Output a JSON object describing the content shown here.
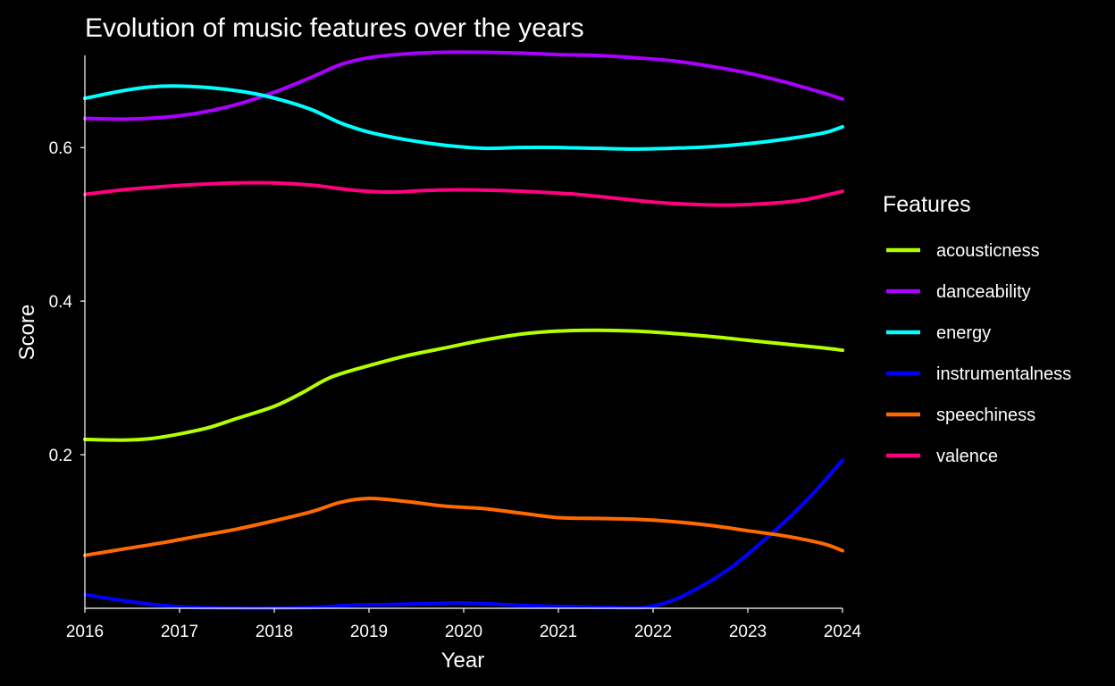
{
  "chart_data": {
    "type": "line",
    "title": "Evolution of music features over the years",
    "xlabel": "Year",
    "ylabel": "Score",
    "xlim": [
      2016,
      2024
    ],
    "ylim": [
      0.0,
      0.72
    ],
    "x_ticks": [
      2016,
      2017,
      2018,
      2019,
      2020,
      2021,
      2022,
      2023,
      2024
    ],
    "y_ticks": [
      0.2,
      0.4,
      0.6
    ],
    "y_tick_labels": [
      "0.2",
      "0.4",
      "0.6"
    ],
    "grid": false,
    "legend": {
      "title": "Features",
      "placement": "right"
    },
    "series": [
      {
        "name": "acousticness",
        "color": "#b3ff00",
        "points": [
          [
            2016.0,
            0.22
          ],
          [
            2016.4,
            0.219
          ],
          [
            2016.7,
            0.221
          ],
          [
            2017.0,
            0.227
          ],
          [
            2017.3,
            0.235
          ],
          [
            2017.6,
            0.247
          ],
          [
            2018.0,
            0.263
          ],
          [
            2018.3,
            0.281
          ],
          [
            2018.6,
            0.301
          ],
          [
            2019.0,
            0.316
          ],
          [
            2019.4,
            0.329
          ],
          [
            2019.8,
            0.339
          ],
          [
            2020.2,
            0.349
          ],
          [
            2020.6,
            0.357
          ],
          [
            2021.0,
            0.361
          ],
          [
            2021.4,
            0.362
          ],
          [
            2021.8,
            0.361
          ],
          [
            2022.2,
            0.358
          ],
          [
            2022.6,
            0.354
          ],
          [
            2023.0,
            0.349
          ],
          [
            2023.4,
            0.344
          ],
          [
            2023.8,
            0.339
          ],
          [
            2024.0,
            0.336
          ]
        ]
      },
      {
        "name": "danceability",
        "color": "#aa00ff",
        "points": [
          [
            2016.0,
            0.638
          ],
          [
            2016.4,
            0.637
          ],
          [
            2016.8,
            0.639
          ],
          [
            2017.2,
            0.645
          ],
          [
            2017.6,
            0.656
          ],
          [
            2018.0,
            0.672
          ],
          [
            2018.4,
            0.692
          ],
          [
            2018.7,
            0.708
          ],
          [
            2019.0,
            0.717
          ],
          [
            2019.4,
            0.722
          ],
          [
            2019.8,
            0.724
          ],
          [
            2020.2,
            0.724
          ],
          [
            2020.6,
            0.723
          ],
          [
            2021.0,
            0.721
          ],
          [
            2021.4,
            0.72
          ],
          [
            2021.8,
            0.717
          ],
          [
            2022.2,
            0.713
          ],
          [
            2022.6,
            0.706
          ],
          [
            2023.0,
            0.697
          ],
          [
            2023.4,
            0.685
          ],
          [
            2023.8,
            0.671
          ],
          [
            2024.0,
            0.663
          ]
        ]
      },
      {
        "name": "energy",
        "color": "#00ffff",
        "points": [
          [
            2016.0,
            0.664
          ],
          [
            2016.4,
            0.674
          ],
          [
            2016.7,
            0.679
          ],
          [
            2017.0,
            0.68
          ],
          [
            2017.4,
            0.677
          ],
          [
            2017.8,
            0.67
          ],
          [
            2018.1,
            0.661
          ],
          [
            2018.4,
            0.649
          ],
          [
            2018.7,
            0.632
          ],
          [
            2019.0,
            0.62
          ],
          [
            2019.4,
            0.61
          ],
          [
            2019.8,
            0.603
          ],
          [
            2020.2,
            0.599
          ],
          [
            2020.6,
            0.6
          ],
          [
            2021.0,
            0.6
          ],
          [
            2021.4,
            0.599
          ],
          [
            2021.8,
            0.598
          ],
          [
            2022.2,
            0.599
          ],
          [
            2022.6,
            0.601
          ],
          [
            2023.0,
            0.605
          ],
          [
            2023.4,
            0.611
          ],
          [
            2023.8,
            0.619
          ],
          [
            2024.0,
            0.627
          ]
        ]
      },
      {
        "name": "instrumentalness",
        "color": "#0000ff",
        "points": [
          [
            2016.0,
            0.018
          ],
          [
            2016.4,
            0.01
          ],
          [
            2016.8,
            0.004
          ],
          [
            2017.2,
            0.001
          ],
          [
            2017.6,
            0.0
          ],
          [
            2018.0,
            0.0
          ],
          [
            2018.4,
            0.001
          ],
          [
            2018.8,
            0.004
          ],
          [
            2019.2,
            0.005
          ],
          [
            2019.6,
            0.006
          ],
          [
            2020.0,
            0.007
          ],
          [
            2020.4,
            0.005
          ],
          [
            2020.8,
            0.003
          ],
          [
            2021.2,
            0.002
          ],
          [
            2021.6,
            0.001
          ],
          [
            2021.9,
            0.001
          ],
          [
            2022.2,
            0.01
          ],
          [
            2022.5,
            0.028
          ],
          [
            2022.8,
            0.051
          ],
          [
            2023.1,
            0.081
          ],
          [
            2023.4,
            0.114
          ],
          [
            2023.7,
            0.151
          ],
          [
            2024.0,
            0.193
          ]
        ]
      },
      {
        "name": "speechiness",
        "color": "#ff6a00",
        "points": [
          [
            2016.0,
            0.069
          ],
          [
            2016.4,
            0.077
          ],
          [
            2016.8,
            0.085
          ],
          [
            2017.2,
            0.094
          ],
          [
            2017.6,
            0.103
          ],
          [
            2018.0,
            0.114
          ],
          [
            2018.4,
            0.126
          ],
          [
            2018.7,
            0.138
          ],
          [
            2019.0,
            0.143
          ],
          [
            2019.4,
            0.139
          ],
          [
            2019.8,
            0.133
          ],
          [
            2020.2,
            0.13
          ],
          [
            2020.6,
            0.124
          ],
          [
            2021.0,
            0.118
          ],
          [
            2021.4,
            0.117
          ],
          [
            2021.8,
            0.116
          ],
          [
            2022.2,
            0.113
          ],
          [
            2022.6,
            0.108
          ],
          [
            2023.0,
            0.101
          ],
          [
            2023.4,
            0.094
          ],
          [
            2023.8,
            0.084
          ],
          [
            2024.0,
            0.075
          ]
        ]
      },
      {
        "name": "valence",
        "color": "#ff007f",
        "points": [
          [
            2016.0,
            0.539
          ],
          [
            2016.4,
            0.545
          ],
          [
            2016.8,
            0.549
          ],
          [
            2017.2,
            0.552
          ],
          [
            2017.6,
            0.554
          ],
          [
            2018.0,
            0.554
          ],
          [
            2018.4,
            0.551
          ],
          [
            2018.8,
            0.545
          ],
          [
            2019.2,
            0.542
          ],
          [
            2019.6,
            0.544
          ],
          [
            2020.0,
            0.545
          ],
          [
            2020.4,
            0.544
          ],
          [
            2020.8,
            0.542
          ],
          [
            2021.2,
            0.539
          ],
          [
            2021.6,
            0.534
          ],
          [
            2022.0,
            0.529
          ],
          [
            2022.4,
            0.526
          ],
          [
            2022.8,
            0.525
          ],
          [
            2023.2,
            0.527
          ],
          [
            2023.6,
            0.532
          ],
          [
            2024.0,
            0.543
          ]
        ]
      }
    ]
  }
}
